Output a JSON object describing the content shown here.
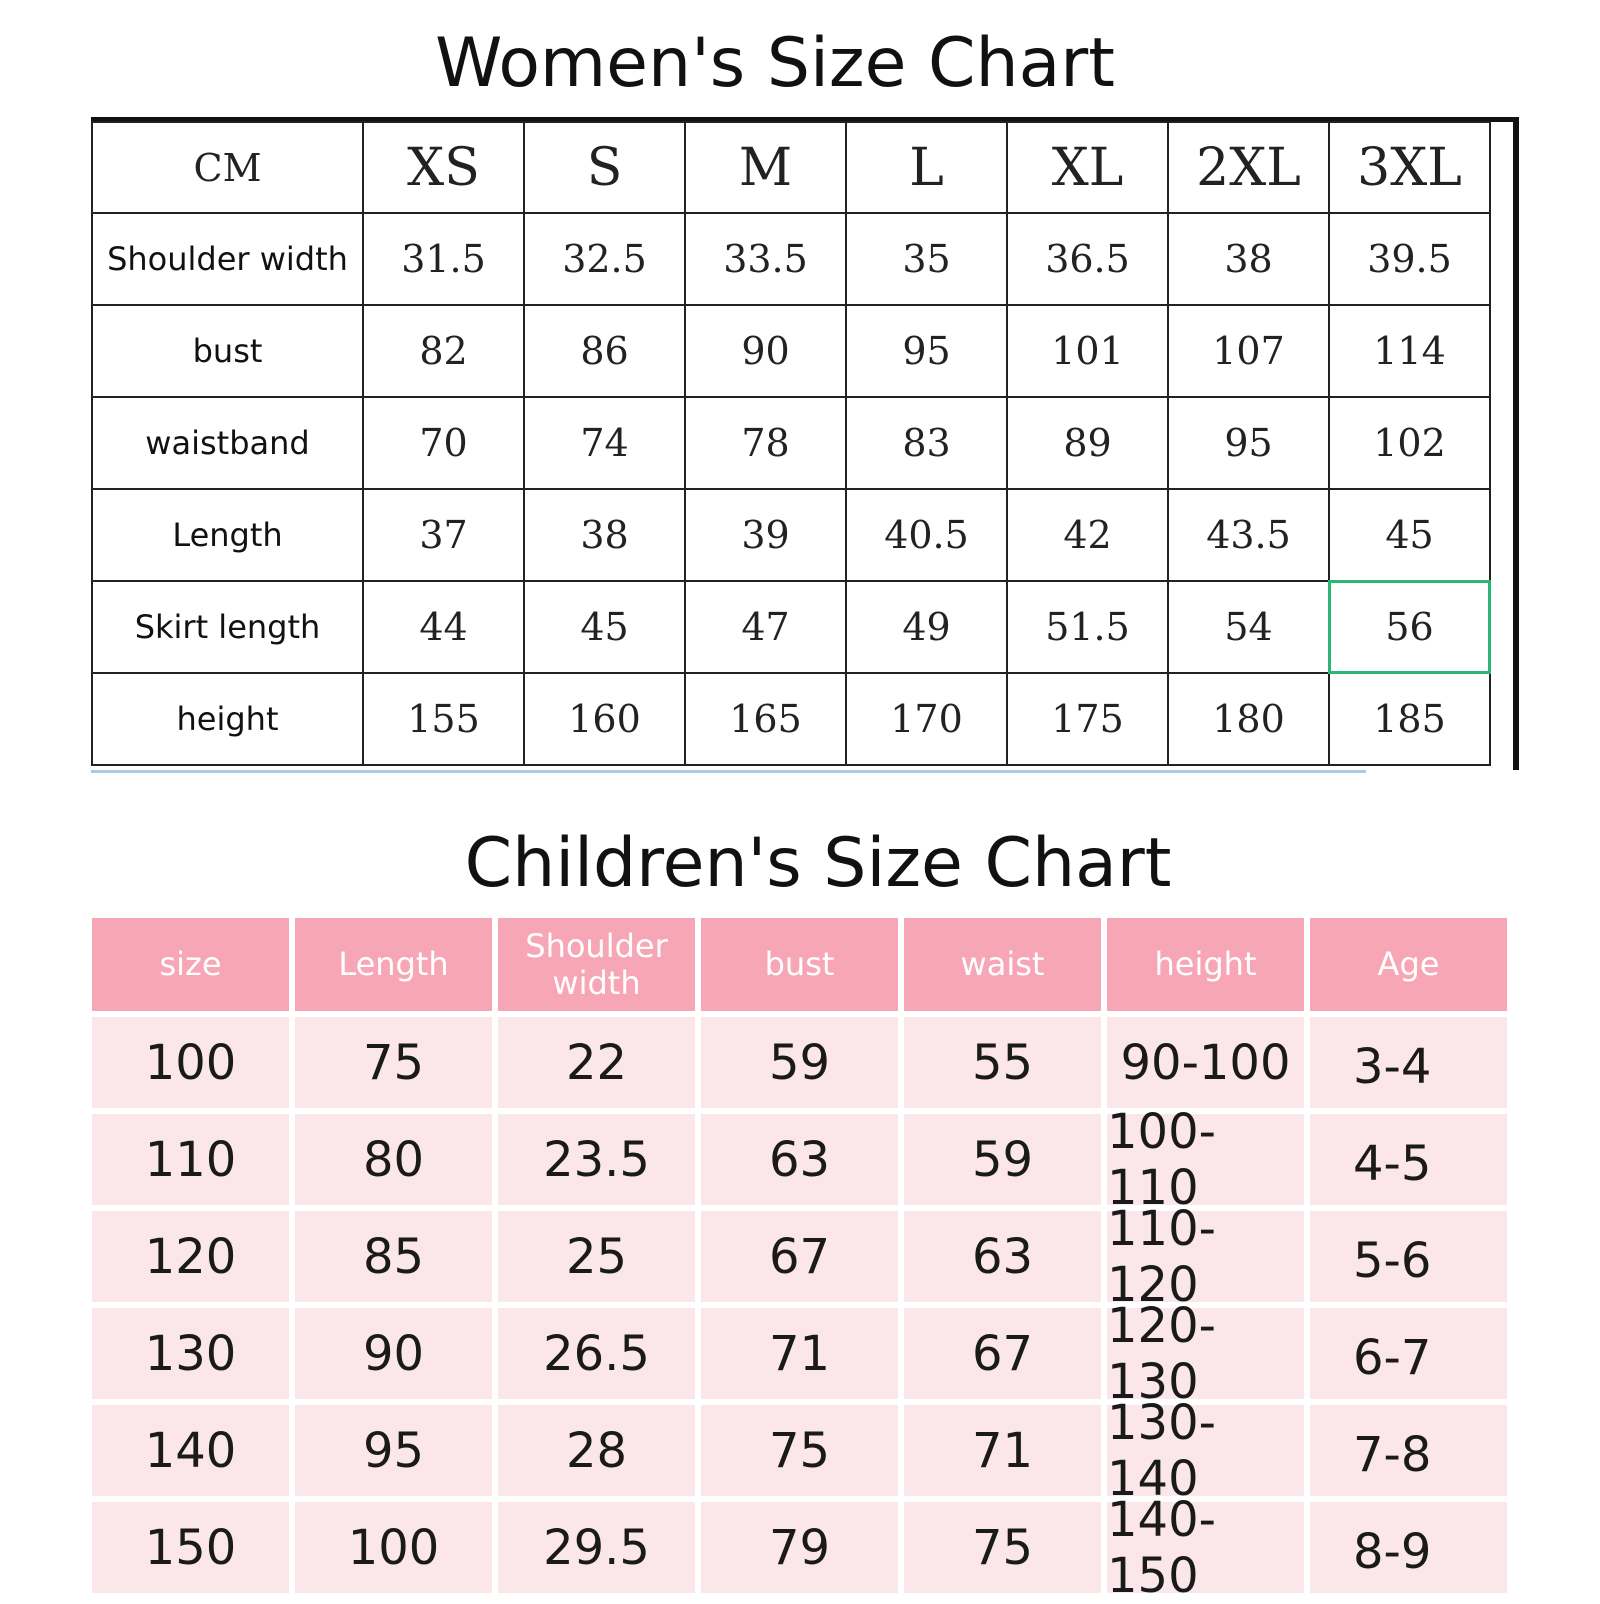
{
  "women": {
    "title": "Women's Size Chart",
    "corner_label": "CM",
    "sizes": [
      "XS",
      "S",
      "M",
      "L",
      "XL",
      "2XL",
      "3XL"
    ],
    "rows": [
      {
        "label": "Shoulder width",
        "values": [
          "31.5",
          "32.5",
          "33.5",
          "35",
          "36.5",
          "38",
          "39.5"
        ]
      },
      {
        "label": "bust",
        "values": [
          "82",
          "86",
          "90",
          "95",
          "101",
          "107",
          "114"
        ]
      },
      {
        "label": "waistband",
        "values": [
          "70",
          "74",
          "78",
          "83",
          "89",
          "95",
          "102"
        ]
      },
      {
        "label": "Length",
        "values": [
          "37",
          "38",
          "39",
          "40.5",
          "42",
          "43.5",
          "45"
        ]
      },
      {
        "label": "Skirt length",
        "values": [
          "44",
          "45",
          "47",
          "49",
          "51.5",
          "54",
          "56"
        ]
      },
      {
        "label": "height",
        "values": [
          "155",
          "160",
          "165",
          "170",
          "175",
          "180",
          "185"
        ]
      }
    ],
    "highlight_color": "#2bb673"
  },
  "children": {
    "title": "Children's Size Chart",
    "headers": [
      "size",
      "Length",
      "Shoulder width",
      "bust",
      "waist",
      "height",
      "Age"
    ],
    "rows": [
      [
        "100",
        "75",
        "22",
        "59",
        "55",
        "90-100",
        "3-4"
      ],
      [
        "110",
        "80",
        "23.5",
        "63",
        "59",
        "100-110",
        "4-5"
      ],
      [
        "120",
        "85",
        "25",
        "67",
        "63",
        "110-120",
        "5-6"
      ],
      [
        "130",
        "90",
        "26.5",
        "71",
        "67",
        "120-130",
        "6-7"
      ],
      [
        "140",
        "95",
        "28",
        "75",
        "71",
        "130-140",
        "7-8"
      ],
      [
        "150",
        "100",
        "29.5",
        "79",
        "75",
        "140-150",
        "8-9"
      ]
    ],
    "header_color": "#f7a6b5",
    "cell_color": "#fbe6ea"
  }
}
